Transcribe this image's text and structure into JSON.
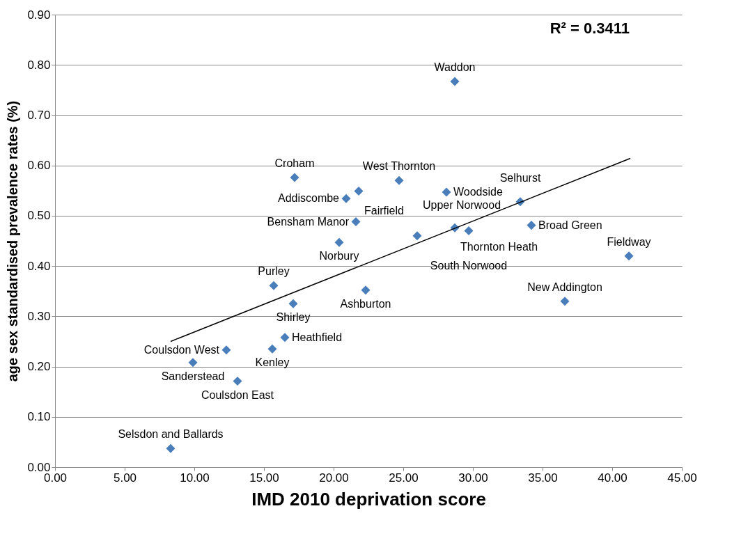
{
  "chart_data": {
    "type": "scatter",
    "xlabel": "IMD 2010 deprivation score",
    "ylabel": "age sex standardised prevalence rates (%)",
    "xlim": [
      0,
      45
    ],
    "ylim": [
      0,
      0.9
    ],
    "xticks": [
      {
        "value": 0,
        "label": "0.00"
      },
      {
        "value": 5,
        "label": "5.00"
      },
      {
        "value": 10,
        "label": "10.00"
      },
      {
        "value": 15,
        "label": "15.00"
      },
      {
        "value": 20,
        "label": "20.00"
      },
      {
        "value": 25,
        "label": "25.00"
      },
      {
        "value": 30,
        "label": "30.00"
      },
      {
        "value": 35,
        "label": "35.00"
      },
      {
        "value": 40,
        "label": "40.00"
      },
      {
        "value": 45,
        "label": "45.00"
      }
    ],
    "yticks": [
      {
        "value": 0,
        "label": "0.00"
      },
      {
        "value": 0.1,
        "label": "0.10"
      },
      {
        "value": 0.2,
        "label": "0.20"
      },
      {
        "value": 0.3,
        "label": "0.30"
      },
      {
        "value": 0.4,
        "label": "0.40"
      },
      {
        "value": 0.5,
        "label": "0.50"
      },
      {
        "value": 0.6,
        "label": "0.60"
      },
      {
        "value": 0.7,
        "label": "0.70"
      },
      {
        "value": 0.8,
        "label": "0.80"
      },
      {
        "value": 0.9,
        "label": "0.90"
      }
    ],
    "grid": "y",
    "series": [
      {
        "marker": "diamond",
        "color": "#4a7ebb",
        "x": [
          28.7,
          17.2,
          24.7,
          21.8,
          28.1,
          20.9,
          33.4,
          21.6,
          28.7,
          34.2,
          29.7,
          26.0,
          20.4,
          41.2,
          15.7,
          22.3,
          36.6,
          17.1,
          16.5,
          15.6,
          12.3,
          9.9,
          13.1,
          8.3
        ],
        "values": [
          0.767,
          0.576,
          0.57,
          0.549,
          0.547,
          0.534,
          0.528,
          0.488,
          0.476,
          0.481,
          0.47,
          0.46,
          0.447,
          0.42,
          0.361,
          0.352,
          0.33,
          0.325,
          0.258,
          0.235,
          0.233,
          0.208,
          0.171,
          0.037
        ]
      },
      {
        "type": "line",
        "color": "#000000",
        "x": [
          8.3,
          41.3
        ],
        "values": [
          0.25,
          0.614
        ]
      }
    ],
    "annotations": [
      "R² = 0.3411",
      {
        "text": "Waddon",
        "x": 28.7,
        "y": 0.767
      },
      {
        "text": "Croham",
        "x": 17.2,
        "y": 0.576
      },
      {
        "text": "West Thornton",
        "x": 24.7,
        "y": 0.57
      },
      {
        "text": "Fairfield",
        "x": 21.8,
        "y": 0.549
      },
      {
        "text": "Woodside",
        "x": 28.1,
        "y": 0.547
      },
      {
        "text": "Addiscombe",
        "x": 20.9,
        "y": 0.534
      },
      {
        "text": "Selhurst",
        "x": 33.4,
        "y": 0.528
      },
      {
        "text": "Bensham Manor",
        "x": 21.6,
        "y": 0.488
      },
      {
        "text": "Thornton Heath",
        "x": 28.7,
        "y": 0.476
      },
      {
        "text": "Broad Green",
        "x": 34.2,
        "y": 0.481
      },
      {
        "text": "South Norwood",
        "x": 29.7,
        "y": 0.47
      },
      {
        "text": "Upper Norwood",
        "x": 26.0,
        "y": 0.46
      },
      {
        "text": "Norbury",
        "x": 20.4,
        "y": 0.447
      },
      {
        "text": "Fieldway",
        "x": 41.2,
        "y": 0.42
      },
      {
        "text": "Purley",
        "x": 15.7,
        "y": 0.361
      },
      {
        "text": "Ashburton",
        "x": 22.3,
        "y": 0.352
      },
      {
        "text": "New Addington",
        "x": 36.6,
        "y": 0.33
      },
      {
        "text": "Shirley",
        "x": 17.1,
        "y": 0.325
      },
      {
        "text": "Heathfield",
        "x": 16.5,
        "y": 0.258
      },
      {
        "text": "Kenley",
        "x": 15.6,
        "y": 0.235
      },
      {
        "text": "Coulsdon West",
        "x": 12.3,
        "y": 0.233
      },
      {
        "text": "Sanderstead",
        "x": 9.9,
        "y": 0.208
      },
      {
        "text": "Coulsdon East",
        "x": 13.1,
        "y": 0.171
      },
      {
        "text": "Selsdon and Ballards",
        "x": 8.3,
        "y": 0.037
      }
    ]
  }
}
